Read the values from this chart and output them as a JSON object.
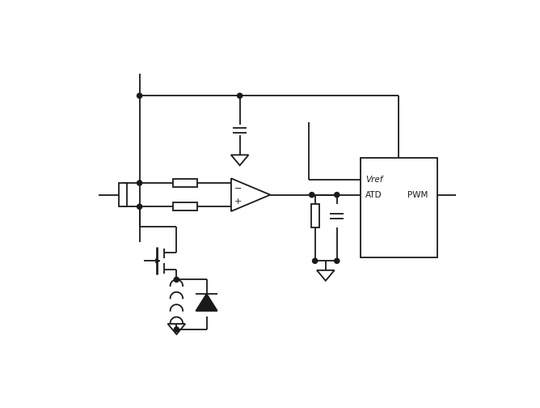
{
  "bg_color": "#ffffff",
  "line_color": "#1a1a1a",
  "line_width": 1.3,
  "figsize": [
    6.68,
    5.04
  ],
  "dpi": 100,
  "box_label_vref": "Vref",
  "box_label_atd": "ATD",
  "box_label_pwm": "PWM"
}
